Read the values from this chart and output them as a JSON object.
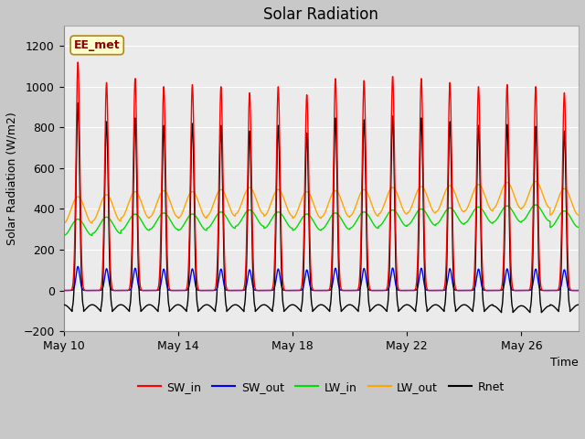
{
  "title": "Solar Radiation",
  "ylabel": "Solar Radiation (W/m2)",
  "xlabel": "Time",
  "ylim": [
    -200,
    1300
  ],
  "yticks": [
    -200,
    0,
    200,
    400,
    600,
    800,
    1000,
    1200
  ],
  "plot_bg_color": "#f0f0f0",
  "fig_bg_color": "#d0d0d0",
  "annotation_text": "EE_met",
  "legend_entries": [
    "SW_in",
    "SW_out",
    "LW_in",
    "LW_out",
    "Rnet"
  ],
  "legend_colors": [
    "red",
    "blue",
    "#00cc00",
    "orange",
    "black"
  ],
  "num_days": 18,
  "title_fontsize": 12,
  "label_fontsize": 9,
  "tick_fontsize": 9,
  "legend_fontsize": 9,
  "line_width": 1.0,
  "xtick_labels": [
    "May 10",
    "May 14",
    "May 18",
    "May 22",
    "May 26"
  ]
}
